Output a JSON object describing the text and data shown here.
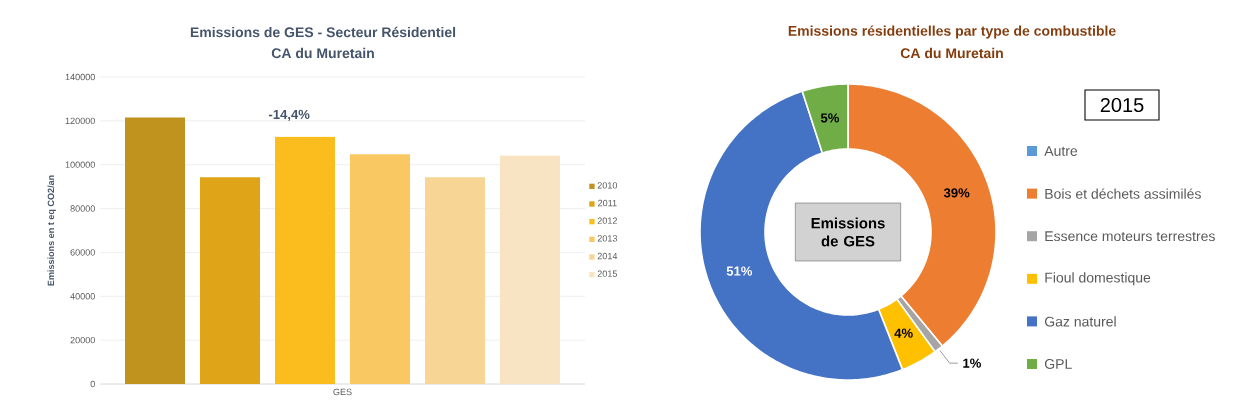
{
  "chart_data": [
    {
      "type": "bar",
      "title": "Emissions de GES - Secteur Résidentiel",
      "subtitle": "CA du Muretain",
      "ylabel": "Emissions en t eq CO2/an",
      "categories": [
        "GES"
      ],
      "series": [
        {
          "name": "2010",
          "color": "#c0921e",
          "values": [
            121500
          ]
        },
        {
          "name": "2011",
          "color": "#dfa417",
          "values": [
            94300
          ]
        },
        {
          "name": "2012",
          "color": "#fbbd1e",
          "values": [
            112800
          ]
        },
        {
          "name": "2013",
          "color": "#f9c862",
          "values": [
            104800
          ]
        },
        {
          "name": "2014",
          "color": "#f6d595",
          "values": [
            94300
          ]
        },
        {
          "name": "2015",
          "color": "#f8e3c2",
          "values": [
            104200
          ]
        }
      ],
      "ylim": [
        0,
        140000
      ],
      "yticks": [
        0,
        20000,
        40000,
        60000,
        80000,
        100000,
        120000,
        140000
      ],
      "grid": "y",
      "legend": "right",
      "annotations": [
        "-14,4%"
      ]
    },
    {
      "type": "donut",
      "title": "Emissions résidentielles par type de combustible",
      "subtitle": "CA du Muretain",
      "legend_title": "2015",
      "categories": [
        "Autre",
        "Bois et déchets assimilés",
        "Essence moteurs terrestres",
        "Fioul domestique",
        "Gaz naturel",
        "GPL"
      ],
      "values": [
        0,
        39,
        1,
        4,
        51,
        5
      ],
      "colors": [
        "#5b9bd5",
        "#ed7d31",
        "#a5a5a5",
        "#ffc000",
        "#4472c4",
        "#70ad47"
      ],
      "value_labels": [
        null,
        "39%",
        "1%",
        "4%",
        "51%",
        "5%"
      ],
      "legend": "right",
      "annotations": [
        "Emissions de GES"
      ]
    }
  ]
}
